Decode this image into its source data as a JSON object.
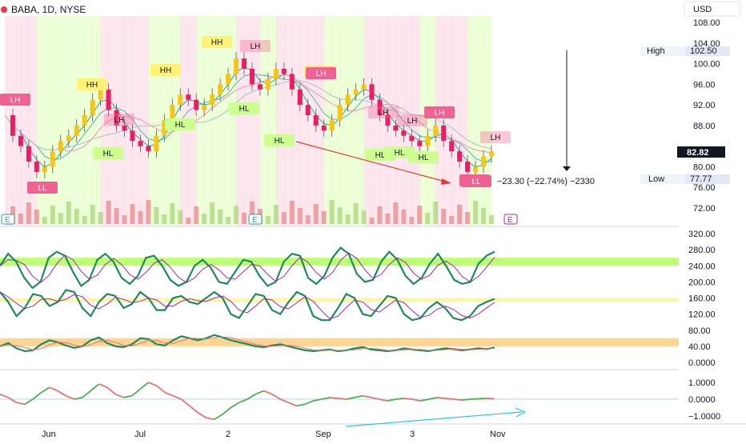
{
  "header": {
    "symbol_line": "BABA, 1D, NYSE",
    "currency": "USD"
  },
  "colors": {
    "up": "#f5c518",
    "down": "#e91e63",
    "ema_fast": "#26a69a",
    "ribbon_green": "#ccff90",
    "ribbon_pink": "#f8bbd0",
    "hh_label": "#fff176",
    "lh_label": "#f06292",
    "hl_label": "#ccff90",
    "osc_green": "#1f8a5b",
    "osc_purple": "#9c27b0",
    "osc_red": "#e57373",
    "band_green": "#b2ff59",
    "band_yellow": "#fff59d",
    "band_orange": "#ffcc80",
    "arrow_red": "#e53935",
    "arrow_teal": "#26c6da"
  },
  "price_axis": {
    "ticks": [
      "108.00",
      "104.00",
      "100.00",
      "96.00",
      "92.00",
      "88.00",
      "84.00",
      "80.00",
      "76.00",
      "72.00"
    ],
    "tick_values": [
      108,
      104,
      100,
      96,
      92,
      88,
      84,
      80,
      76,
      72
    ]
  },
  "osc1_axis": {
    "ticks": [
      "320.00",
      "280.00",
      "240.00",
      "200.00",
      "160.00",
      "120.00",
      "80.00",
      "40.00",
      "0.0000"
    ],
    "tick_values": [
      320,
      280,
      240,
      200,
      160,
      120,
      80,
      40,
      0
    ]
  },
  "osc2_axis": {
    "ticks": [
      "1.0000",
      "0.0000",
      "−1.0000"
    ],
    "tick_values": [
      1,
      0,
      -1
    ]
  },
  "time_axis": {
    "labels": [
      "Jun",
      "Jul",
      "2",
      "Sep",
      "3",
      "Nov"
    ]
  },
  "readouts": {
    "high_label": "High",
    "high_value": "102.50",
    "low_label": "Low",
    "low_value": "77.77",
    "last_price": "82.82",
    "range_text": "−23.30 (−22.74%) −2330"
  },
  "earnings_marker": "E",
  "pivot_labels": [
    {
      "text": "HH",
      "kind": "hh"
    },
    {
      "text": "HH",
      "kind": "hh"
    },
    {
      "text": "HH",
      "kind": "hh"
    },
    {
      "text": "HH",
      "kind": "hh"
    },
    {
      "text": "LH",
      "kind": "lh"
    },
    {
      "text": "LH",
      "kind": "lh"
    },
    {
      "text": "LH",
      "kind": "lh"
    },
    {
      "text": "LH",
      "kind": "lh"
    },
    {
      "text": "LH",
      "kind": "lh"
    },
    {
      "text": "LH",
      "kind": "lh"
    },
    {
      "text": "LH",
      "kind": "lh"
    },
    {
      "text": "LH",
      "kind": "lh"
    },
    {
      "text": "HL",
      "kind": "hl"
    },
    {
      "text": "HL",
      "kind": "hl"
    },
    {
      "text": "HL",
      "kind": "hl"
    },
    {
      "text": "HL",
      "kind": "hl"
    },
    {
      "text": "HL",
      "kind": "hl"
    },
    {
      "text": "HL",
      "kind": "hl"
    },
    {
      "text": "HL",
      "kind": "hl"
    },
    {
      "text": "LL",
      "kind": "ll"
    },
    {
      "text": "LL",
      "kind": "ll"
    },
    {
      "text": "LL",
      "kind": "ll"
    }
  ],
  "chart_data": {
    "type": "line",
    "title": "BABA, 1D, NYSE",
    "x_labels": [
      "Jun",
      "Jul",
      "2",
      "Sep",
      "3",
      "Nov"
    ],
    "price_series": {
      "values": [
        90,
        86,
        84,
        81,
        79,
        80,
        83,
        85,
        86,
        88,
        90,
        93,
        95,
        91,
        88,
        87,
        85,
        84,
        83,
        86,
        89,
        92,
        94,
        93,
        91,
        92,
        94,
        96,
        98,
        101,
        99,
        96,
        95,
        97,
        99,
        98,
        95,
        92,
        90,
        88,
        87,
        89,
        92,
        94,
        95,
        96,
        93,
        90,
        88,
        87,
        86,
        85,
        84,
        86,
        88,
        85,
        83,
        81,
        79,
        80,
        82,
        83
      ],
      "ylim": [
        70,
        110
      ]
    },
    "series": [
      {
        "values": [
          240,
          270,
          250,
          210,
          185,
          200,
          260,
          275,
          265,
          225,
          190,
          205,
          255,
          270,
          250,
          210,
          195,
          215,
          260,
          265,
          240,
          205,
          190,
          200,
          240,
          255,
          235,
          200,
          195,
          225,
          255,
          250,
          215,
          190,
          200,
          250,
          270,
          265,
          210,
          195,
          215,
          260,
          285,
          270,
          220,
          200,
          205,
          250,
          275,
          255,
          215,
          195,
          210,
          245,
          270,
          240,
          205,
          195,
          200,
          245,
          265,
          275
        ]
      },
      {
        "values": [
          175,
          150,
          115,
          135,
          170,
          165,
          140,
          150,
          180,
          175,
          135,
          115,
          150,
          170,
          165,
          135,
          145,
          175,
          160,
          130,
          130,
          160,
          165,
          150,
          145,
          160,
          175,
          160,
          120,
          110,
          140,
          170,
          165,
          130,
          120,
          150,
          175,
          165,
          115,
          105,
          105,
          135,
          170,
          160,
          120,
          115,
          140,
          165,
          160,
          120,
          105,
          110,
          135,
          150,
          135,
          110,
          105,
          115,
          140,
          150,
          158
        ]
      },
      {
        "values": [
          40,
          48,
          35,
          28,
          30,
          45,
          55,
          50,
          42,
          36,
          40,
          55,
          62,
          48,
          40,
          38,
          45,
          60,
          58,
          45,
          42,
          55,
          65,
          60,
          55,
          60,
          68,
          62,
          55,
          50,
          45,
          40,
          38,
          42,
          45,
          40,
          35,
          30,
          28,
          30,
          32,
          28,
          30,
          35,
          38,
          32,
          30,
          28,
          30,
          35,
          32,
          30,
          28,
          32,
          35,
          33,
          30,
          32,
          35,
          33,
          37
        ]
      },
      {
        "values": [
          0.3,
          0.1,
          -0.2,
          -0.3,
          0.0,
          0.4,
          0.7,
          0.5,
          0.2,
          0.0,
          0.1,
          0.5,
          0.9,
          0.7,
          0.3,
          0.1,
          0.2,
          0.6,
          1.0,
          0.8,
          0.4,
          0.2,
          0.0,
          -0.4,
          -0.8,
          -1.1,
          -1.2,
          -0.9,
          -0.5,
          -0.2,
          0.0,
          0.3,
          0.5,
          0.3,
          0.0,
          -0.2,
          -0.4,
          -0.3,
          -0.1,
          0.0,
          0.1,
          0.05,
          0.0,
          0.1,
          0.2,
          0.1,
          0.0,
          -0.1,
          0.0,
          0.05,
          0.0,
          -0.1,
          0.0,
          0.1,
          0.05,
          0.0,
          -0.05,
          0.0,
          0.02,
          0.05,
          0.03
        ]
      }
    ],
    "bands": [
      [
        240,
        260
      ],
      [
        150,
        160
      ],
      [
        40,
        60
      ]
    ]
  }
}
